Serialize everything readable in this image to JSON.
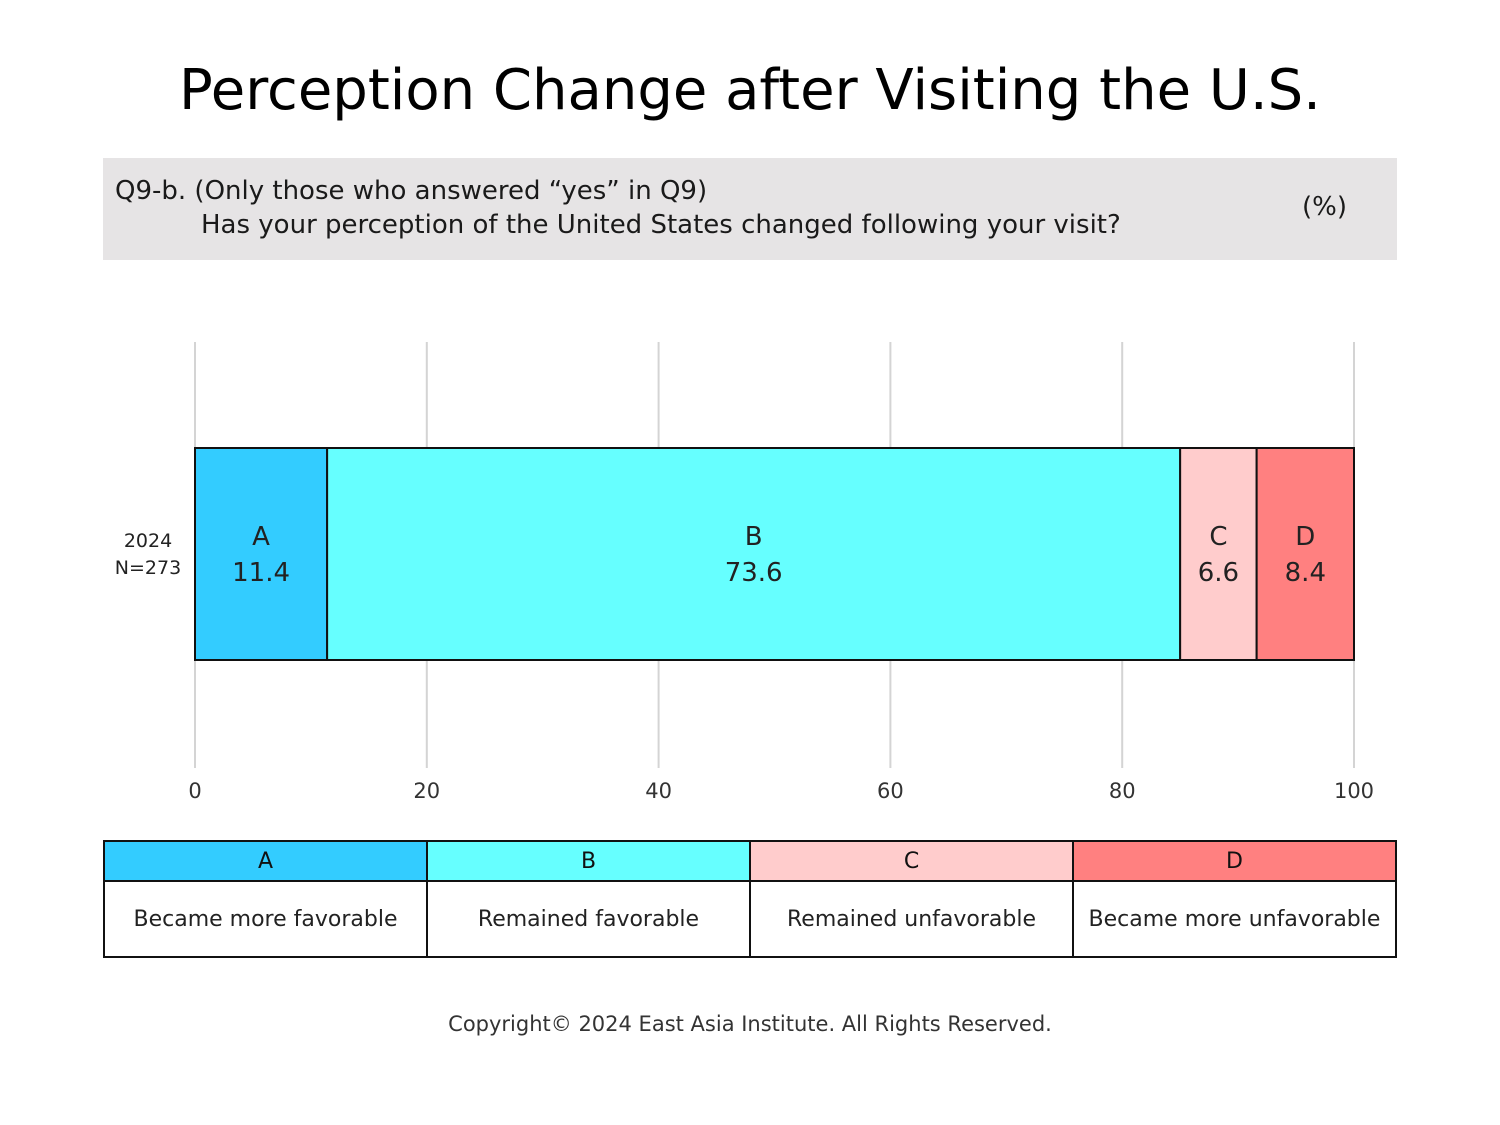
{
  "title": "Perception Change after Visiting the U.S.",
  "question": {
    "line1": "Q9-b. (Only those who answered “yes” in Q9)",
    "line2": "Has your perception of the United States changed following your visit?",
    "unit": "(%)"
  },
  "chart_data": {
    "type": "bar",
    "orientation": "horizontal-stacked",
    "categories": [
      "2024\nN=273"
    ],
    "category_lines": [
      "2024",
      "N=273"
    ],
    "series": [
      {
        "name": "A",
        "values": [
          11.4
        ],
        "color": "#33ccff"
      },
      {
        "name": "B",
        "values": [
          73.6
        ],
        "color": "#66ffff"
      },
      {
        "name": "C",
        "values": [
          6.6
        ],
        "color": "#ffcccc"
      },
      {
        "name": "D",
        "values": [
          8.4
        ],
        "color": "#ff8080"
      }
    ],
    "xlim": [
      0,
      100
    ],
    "xticks": [
      0,
      20,
      40,
      60,
      80,
      100
    ],
    "grid": true
  },
  "legend": [
    {
      "key": "A",
      "label": "Became more favorable",
      "color": "#33ccff"
    },
    {
      "key": "B",
      "label": "Remained favorable",
      "color": "#66ffff"
    },
    {
      "key": "C",
      "label": "Remained unfavorable",
      "color": "#ffcccc"
    },
    {
      "key": "D",
      "label": "Became more unfavorable",
      "color": "#ff8080"
    }
  ],
  "copyright": "Copyright© 2024 East Asia Institute. All Rights Reserved."
}
